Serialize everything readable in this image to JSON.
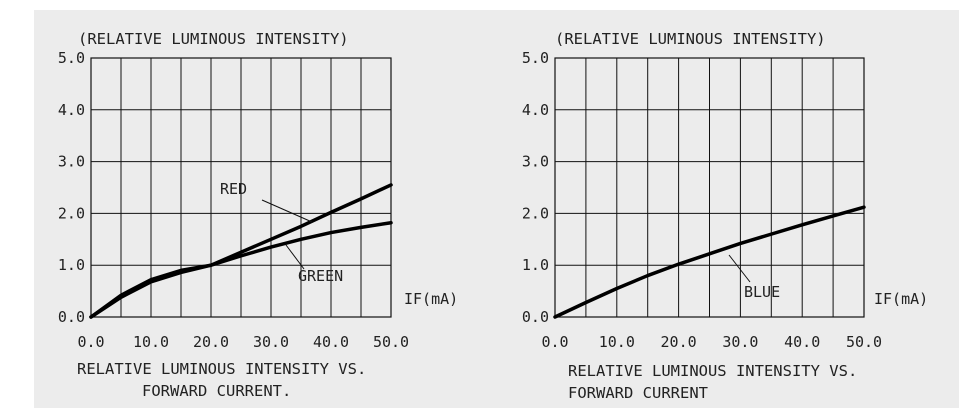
{
  "chart_data": [
    {
      "type": "line",
      "title": "(RELATIVE LUMINOUS INTENSITY)",
      "xlabel": "IF(mA)",
      "caption": [
        "RELATIVE LUMINOUS INTENSITY VS.",
        "FORWARD CURRENT."
      ],
      "xlim": [
        0,
        50
      ],
      "ylim": [
        0,
        5
      ],
      "x_ticks": [
        "0.0",
        "10.0",
        "20.0",
        "30.0",
        "40.0",
        "50.0"
      ],
      "y_ticks": [
        "0.0",
        "1.0",
        "2.0",
        "3.0",
        "4.0",
        "5.0"
      ],
      "grid": true,
      "series": [
        {
          "name": "RED",
          "x": [
            0,
            5,
            10,
            15,
            20,
            25,
            30,
            35,
            40,
            45,
            50
          ],
          "values": [
            0,
            0.38,
            0.68,
            0.86,
            1.0,
            1.25,
            1.5,
            1.75,
            2.02,
            2.28,
            2.55
          ]
        },
        {
          "name": "GREEN",
          "x": [
            0,
            5,
            10,
            15,
            20,
            25,
            30,
            35,
            40,
            45,
            50
          ],
          "values": [
            0,
            0.42,
            0.72,
            0.9,
            1.0,
            1.18,
            1.35,
            1.5,
            1.63,
            1.73,
            1.82
          ]
        }
      ]
    },
    {
      "type": "line",
      "title": "(RELATIVE LUMINOUS INTENSITY)",
      "xlabel": "IF(mA)",
      "caption": [
        "RELATIVE LUMINOUS INTENSITY VS.",
        "FORWARD CURRENT"
      ],
      "xlim": [
        0,
        50
      ],
      "ylim": [
        0,
        5
      ],
      "x_ticks": [
        "0.0",
        "10.0",
        "20.0",
        "30.0",
        "40.0",
        "50.0"
      ],
      "y_ticks": [
        "0.0",
        "1.0",
        "2.0",
        "3.0",
        "4.0",
        "5.0"
      ],
      "grid": true,
      "series": [
        {
          "name": "BLUE",
          "x": [
            0,
            5,
            10,
            15,
            20,
            25,
            30,
            35,
            40,
            45,
            50
          ],
          "values": [
            0,
            0.28,
            0.55,
            0.8,
            1.02,
            1.22,
            1.42,
            1.6,
            1.78,
            1.95,
            2.12
          ]
        }
      ]
    }
  ]
}
